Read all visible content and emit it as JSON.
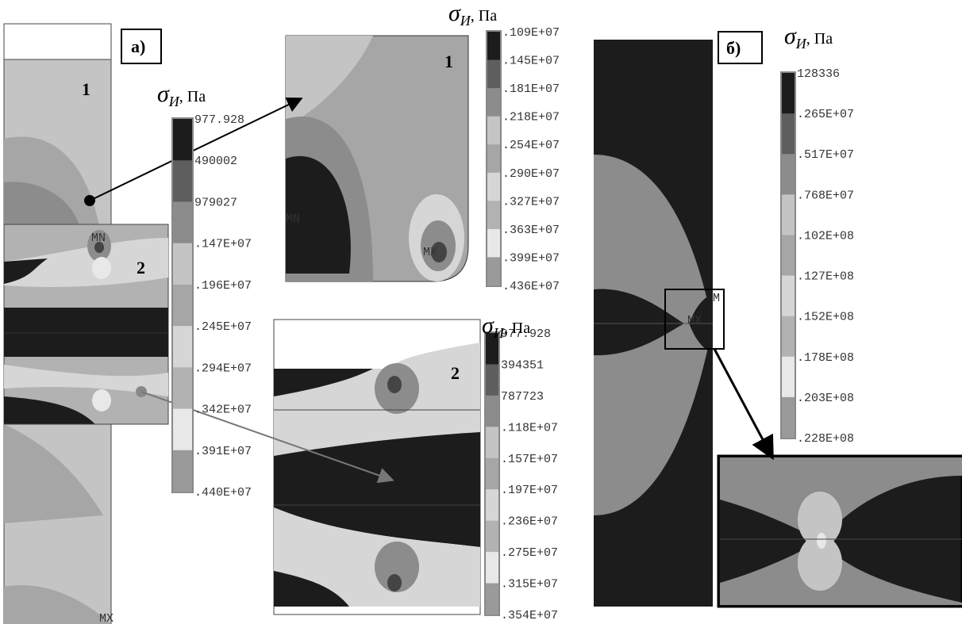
{
  "figure_labels": [
    "а)",
    "б)"
  ],
  "part_labels": [
    "1",
    "2",
    "1",
    "2"
  ],
  "markers": [
    "MN",
    "MX",
    "MN",
    "MX",
    "MX",
    "M"
  ],
  "legends": [
    {
      "title": {
        "symbol": "σ",
        "subscript": "И",
        "unit": ", Па"
      },
      "labels": [
        "977.928",
        "490002",
        "979027",
        ".147E+07",
        ".196E+07",
        ".245E+07",
        ".294E+07",
        ".342E+07",
        ".391E+07",
        ".440E+07"
      ],
      "colors": [
        "#1c1c1c",
        "#5e5e5e",
        "#8c8c8c",
        "#c4c4c4",
        "#a6a6a6",
        "#d6d6d6",
        "#b2b2b2",
        "#e8e8e8",
        "#9a9a9a"
      ]
    },
    {
      "title": {
        "symbol": "σ",
        "subscript": "И",
        "unit": ", Па"
      },
      "labels": [
        ".109E+07",
        ".145E+07",
        ".181E+07",
        ".218E+07",
        ".254E+07",
        ".290E+07",
        ".327E+07",
        ".363E+07",
        ".399E+07",
        ".436E+07"
      ],
      "colors": [
        "#1c1c1c",
        "#5e5e5e",
        "#8c8c8c",
        "#c4c4c4",
        "#a6a6a6",
        "#d6d6d6",
        "#b2b2b2",
        "#e8e8e8",
        "#9a9a9a"
      ]
    },
    {
      "title": {
        "symbol": "σ",
        "subscript": "И",
        "unit": ", Па"
      },
      "labels": [
        "977.928",
        "394351",
        "787723",
        ".118E+07",
        ".157E+07",
        ".197E+07",
        ".236E+07",
        ".275E+07",
        ".315E+07",
        ".354E+07"
      ],
      "colors": [
        "#1c1c1c",
        "#5e5e5e",
        "#8c8c8c",
        "#c4c4c4",
        "#a6a6a6",
        "#d6d6d6",
        "#b2b2b2",
        "#e8e8e8",
        "#9a9a9a"
      ]
    },
    {
      "title": {
        "symbol": "σ",
        "subscript": "И",
        "unit": ", Па"
      },
      "labels": [
        "128336",
        ".265E+07",
        ".517E+07",
        ".768E+07",
        ".102E+08",
        ".127E+08",
        ".152E+08",
        ".178E+08",
        ".203E+08",
        ".228E+08"
      ],
      "colors": [
        "#1c1c1c",
        "#5e5e5e",
        "#8c8c8c",
        "#c4c4c4",
        "#a6a6a6",
        "#d6d6d6",
        "#b2b2b2",
        "#e8e8e8",
        "#9a9a9a"
      ]
    }
  ]
}
